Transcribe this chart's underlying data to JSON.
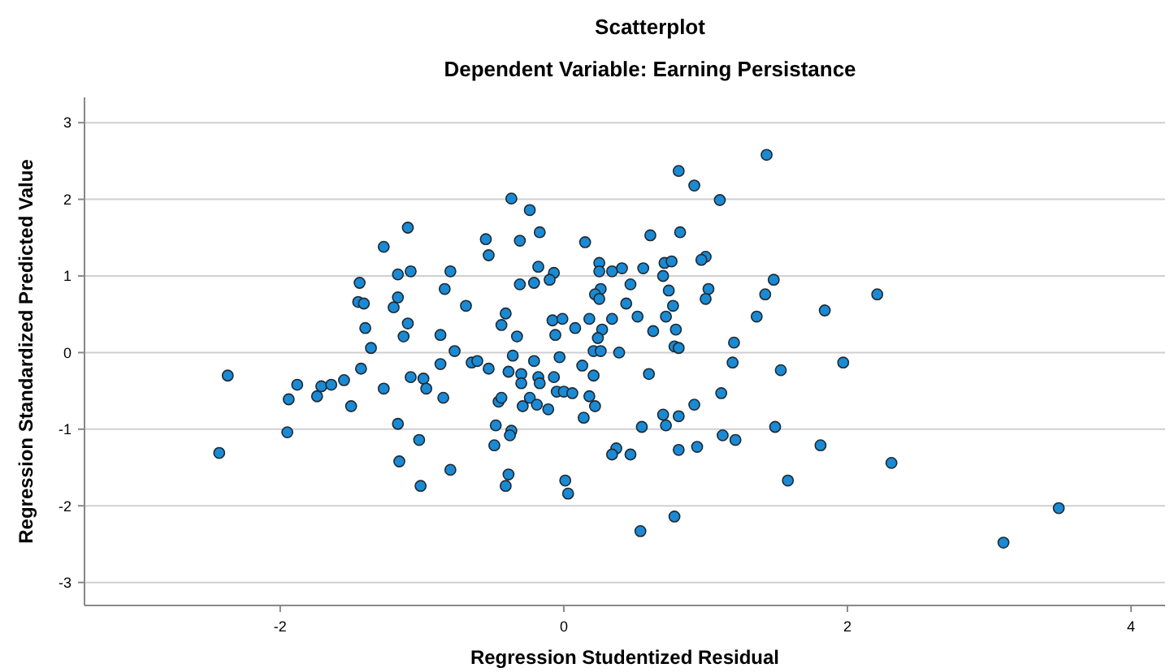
{
  "chart_data": {
    "type": "scatter",
    "title": "Scatterplot",
    "subtitle": "Dependent Variable: Earning Persistance",
    "xlabel": "Regression Studentized Residual",
    "ylabel": "Regression Standardized Predicted Value",
    "xlim": [
      -3.38,
      4.24
    ],
    "ylim": [
      -3.3,
      3.33
    ],
    "xticks": [
      -2,
      0,
      2,
      4
    ],
    "yticks": [
      -3,
      -2,
      -1,
      0,
      1,
      2,
      3
    ],
    "grid": "y",
    "marker": "circle",
    "x": [
      -2.37,
      -2.43,
      -1.95,
      -1.94,
      -1.88,
      -1.74,
      -1.71,
      -1.64,
      -1.55,
      -1.5,
      -1.43,
      -1.36,
      -1.4,
      -1.45,
      -1.41,
      -1.44,
      -0.37,
      -0.24,
      -0.17,
      -1.1,
      -1.27,
      -0.55,
      -0.31,
      -0.53,
      -0.18,
      -1.17,
      -1.08,
      -0.8,
      -0.84,
      -0.31,
      -0.21,
      -1.17,
      -1.2,
      -0.69,
      -0.41,
      -0.44,
      -0.33,
      -1.1,
      -1.13,
      -0.87,
      -0.77,
      -0.36,
      -0.21,
      -0.87,
      -0.65,
      -0.61,
      -0.53,
      -0.39,
      -0.3,
      -0.3,
      -0.18,
      -0.17,
      -1.27,
      -1.08,
      -0.99,
      -0.97,
      -0.85,
      -0.46,
      -0.44,
      -0.29,
      -0.24,
      -0.19,
      -1.17,
      -1.02,
      -0.48,
      -0.49,
      -0.37,
      -0.38,
      -1.16,
      -0.8,
      -1.01,
      -0.39,
      -0.41,
      0.81,
      0.92,
      0.15,
      0.61,
      0.82,
      -0.07,
      -0.1,
      0.25,
      0.25,
      0.34,
      0.41,
      0.56,
      0.71,
      0.76,
      0.7,
      0.47,
      0.26,
      0.22,
      0.25,
      0.74,
      0.44,
      0.77,
      -0.08,
      -0.01,
      0.18,
      0.34,
      0.52,
      0.72,
      -0.06,
      0.08,
      0.27,
      0.24,
      0.63,
      0.79,
      0.78,
      0.81,
      0.21,
      0.26,
      0.39,
      -0.03,
      0.13,
      0.21,
      -0.07,
      0.6,
      -0.05,
      0.0,
      0.06,
      0.18,
      -0.11,
      0.22,
      0.14,
      0.7,
      0.72,
      0.81,
      0.92,
      0.55,
      0.37,
      0.34,
      0.47,
      0.81,
      0.94,
      0.01,
      0.03,
      0.54,
      0.78,
      1.43,
      1.1,
      1.0,
      0.97,
      1.48,
      1.02,
      1.0,
      1.42,
      1.36,
      1.84,
      1.2,
      1.19,
      1.53,
      1.97,
      1.11,
      1.49,
      1.12,
      1.21,
      1.81,
      1.58,
      2.21,
      2.31,
      3.49,
      3.1
    ],
    "series": [
      {
        "color": "#1a8ad4",
        "values": [
          -0.3,
          -1.31,
          -1.04,
          -0.61,
          -0.42,
          -0.57,
          -0.44,
          -0.42,
          -0.36,
          -0.7,
          -0.21,
          0.06,
          0.32,
          0.66,
          0.64,
          0.91,
          2.01,
          1.86,
          1.57,
          1.63,
          1.38,
          1.48,
          1.46,
          1.27,
          1.12,
          1.02,
          1.06,
          1.06,
          0.83,
          0.89,
          0.91,
          0.72,
          0.59,
          0.61,
          0.51,
          0.36,
          0.21,
          0.38,
          0.21,
          0.23,
          0.02,
          -0.04,
          -0.11,
          -0.15,
          -0.13,
          -0.11,
          -0.21,
          -0.25,
          -0.28,
          -0.4,
          -0.32,
          -0.4,
          -0.47,
          -0.32,
          -0.34,
          -0.47,
          -0.59,
          -0.64,
          -0.59,
          -0.7,
          -0.59,
          -0.68,
          -0.93,
          -1.14,
          -0.95,
          -1.21,
          -1.02,
          -1.08,
          -1.42,
          -1.53,
          -1.74,
          -1.59,
          -1.74,
          2.37,
          2.18,
          1.44,
          1.53,
          1.57,
          1.04,
          0.95,
          1.17,
          1.06,
          1.06,
          1.1,
          1.1,
          1.17,
          1.19,
          1.0,
          0.89,
          0.83,
          0.76,
          0.7,
          0.81,
          0.64,
          0.61,
          0.42,
          0.44,
          0.44,
          0.44,
          0.47,
          0.47,
          0.23,
          0.32,
          0.3,
          0.19,
          0.28,
          0.3,
          0.08,
          0.06,
          0.02,
          0.02,
          0.0,
          -0.06,
          -0.17,
          -0.3,
          -0.32,
          -0.28,
          -0.51,
          -0.51,
          -0.53,
          -0.57,
          -0.74,
          -0.7,
          -0.85,
          -0.81,
          -0.95,
          -0.83,
          -0.68,
          -0.97,
          -1.25,
          -1.33,
          -1.33,
          -1.27,
          -1.23,
          -1.67,
          -1.84,
          -2.33,
          -2.14,
          2.58,
          1.99,
          1.25,
          1.21,
          0.95,
          0.83,
          0.7,
          0.76,
          0.47,
          0.55,
          0.13,
          -0.13,
          -0.23,
          -0.13,
          -0.53,
          -0.97,
          -1.08,
          -1.14,
          -1.21,
          -1.67,
          0.76,
          -1.44,
          -2.03,
          -2.48
        ]
      }
    ]
  }
}
